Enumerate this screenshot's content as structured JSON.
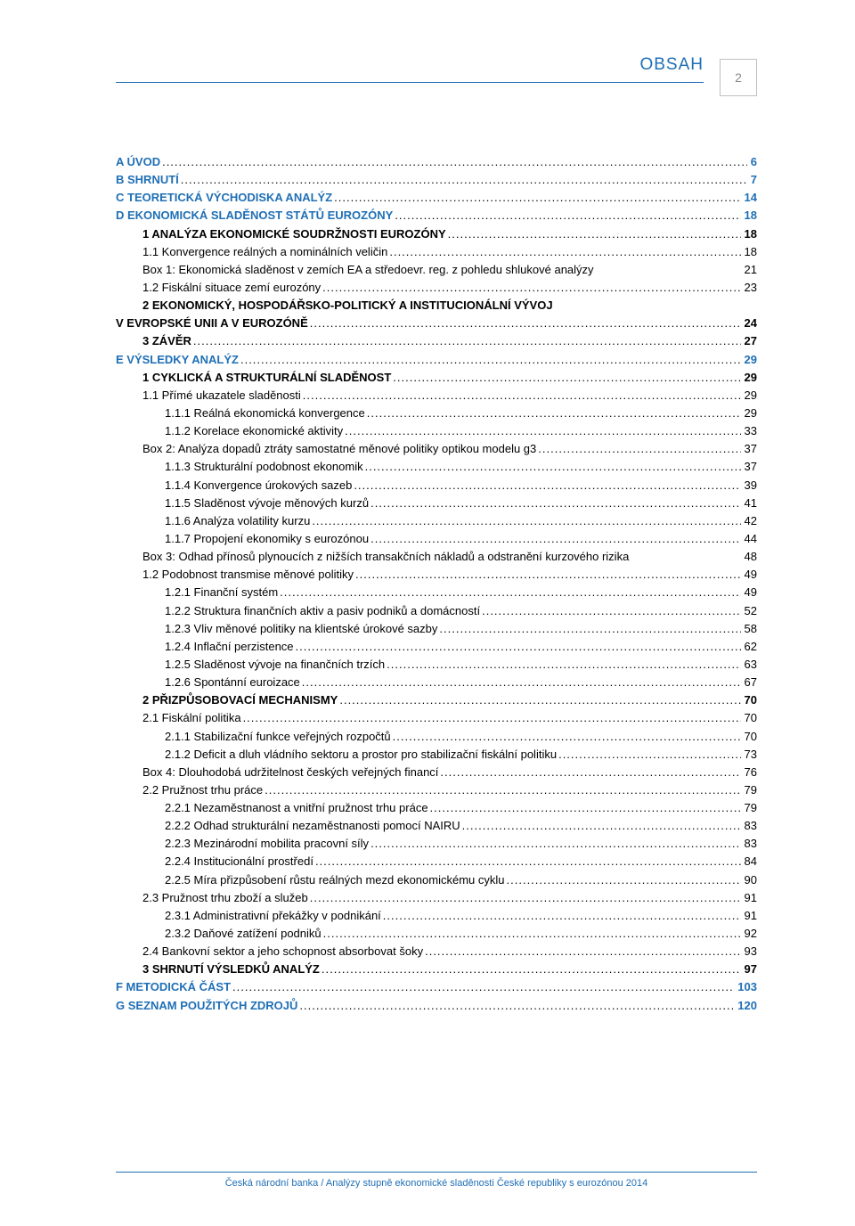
{
  "header": {
    "title": "OBSAH",
    "page_number": "2"
  },
  "colors": {
    "link": "#1f6fb5",
    "text": "#000000",
    "border_gray": "#c0c0c0"
  },
  "toc": [
    {
      "indent": 0,
      "bold": true,
      "blue": true,
      "label": "A    ÚVOD",
      "page": "6"
    },
    {
      "indent": 0,
      "bold": true,
      "blue": true,
      "label": "B    SHRNUTÍ",
      "page": "7"
    },
    {
      "indent": 0,
      "bold": true,
      "blue": true,
      "label": "C    TEORETICKÁ VÝCHODISKA ANALÝZ",
      "page": "14"
    },
    {
      "indent": 0,
      "bold": true,
      "blue": true,
      "label": "D    EKONOMICKÁ SLADĚNOST STÁTŮ EUROZÓNY",
      "page": "18"
    },
    {
      "indent": 30,
      "bold": true,
      "blue": false,
      "label": "1     ANALÝZA EKONOMICKÉ SOUDRŽNOSTI EUROZÓNY",
      "page": "18"
    },
    {
      "indent": 30,
      "bold": false,
      "blue": false,
      "label": "1.1    Konvergence reálných a nominálních veličin",
      "page": "18"
    },
    {
      "indent": 30,
      "bold": false,
      "blue": false,
      "label": "Box 1: Ekonomická sladěnost v zemích EA a středoevr. reg. z pohledu shlukové analýzy",
      "page": "21",
      "dots": false
    },
    {
      "indent": 30,
      "bold": false,
      "blue": false,
      "label": "1.2    Fiskální situace zemí eurozóny",
      "page": "23"
    },
    {
      "indent": 30,
      "bold": true,
      "blue": false,
      "label": "2     EKONOMICKÝ, HOSPODÁŘSKO-POLITICKÝ A INSTITUCIONÁLNÍ VÝVOJ",
      "nopage": true
    },
    {
      "indent": 0,
      "bold": true,
      "blue": false,
      "label": "V EVROPSKÉ UNII A V EUROZÓNĚ",
      "page": "24"
    },
    {
      "indent": 30,
      "bold": true,
      "blue": false,
      "label": "3     ZÁVĚR",
      "page": "27"
    },
    {
      "indent": 0,
      "bold": true,
      "blue": true,
      "label": "E    VÝSLEDKY ANALÝZ",
      "page": "29"
    },
    {
      "indent": 30,
      "bold": true,
      "blue": false,
      "label": "1     CYKLICKÁ A STRUKTURÁLNÍ SLADĚNOST",
      "page": "29"
    },
    {
      "indent": 30,
      "bold": false,
      "blue": false,
      "label": "1.1    Přímé ukazatele sladěnosti",
      "page": "29"
    },
    {
      "indent": 55,
      "bold": false,
      "blue": false,
      "label": "1.1.1    Reálná ekonomická konvergence",
      "page": "29"
    },
    {
      "indent": 55,
      "bold": false,
      "blue": false,
      "label": "1.1.2    Korelace ekonomické aktivity",
      "page": "33"
    },
    {
      "indent": 30,
      "bold": false,
      "blue": false,
      "label": "Box 2: Analýza dopadů ztráty samostatné měnové politiky optikou modelu g3",
      "page": "37"
    },
    {
      "indent": 55,
      "bold": false,
      "blue": false,
      "label": "1.1.3    Strukturální podobnost ekonomik",
      "page": "37"
    },
    {
      "indent": 55,
      "bold": false,
      "blue": false,
      "label": "1.1.4    Konvergence úrokových sazeb",
      "page": "39"
    },
    {
      "indent": 55,
      "bold": false,
      "blue": false,
      "label": "1.1.5    Sladěnost vývoje měnových kurzů",
      "page": "41"
    },
    {
      "indent": 55,
      "bold": false,
      "blue": false,
      "label": "1.1.6    Analýza volatility kurzu",
      "page": "42"
    },
    {
      "indent": 55,
      "bold": false,
      "blue": false,
      "label": "1.1.7    Propojení ekonomiky s eurozónou",
      "page": "44"
    },
    {
      "indent": 30,
      "bold": false,
      "blue": false,
      "label": "Box 3: Odhad přínosů plynoucích z nižších transakčních nákladů a odstranění kurzového rizika",
      "page": "48",
      "dots": false
    },
    {
      "indent": 30,
      "bold": false,
      "blue": false,
      "label": "1.2    Podobnost transmise měnové politiky",
      "page": "49"
    },
    {
      "indent": 55,
      "bold": false,
      "blue": false,
      "label": "1.2.1    Finanční systém",
      "page": "49"
    },
    {
      "indent": 55,
      "bold": false,
      "blue": false,
      "label": "1.2.2    Struktura finančních aktiv a pasiv podniků a domácností",
      "page": "52"
    },
    {
      "indent": 55,
      "bold": false,
      "blue": false,
      "label": "1.2.3    Vliv měnové politiky na klientské úrokové sazby",
      "page": "58"
    },
    {
      "indent": 55,
      "bold": false,
      "blue": false,
      "label": "1.2.4    Inflační perzistence",
      "page": "62"
    },
    {
      "indent": 55,
      "bold": false,
      "blue": false,
      "label": "1.2.5    Sladěnost vývoje na finančních trzích",
      "page": "63"
    },
    {
      "indent": 55,
      "bold": false,
      "blue": false,
      "label": "1.2.6    Spontánní euroizace",
      "page": "67"
    },
    {
      "indent": 30,
      "bold": true,
      "blue": false,
      "label": "2     PŘIZPŮSOBOVACÍ MECHANISMY",
      "page": "70"
    },
    {
      "indent": 30,
      "bold": false,
      "blue": false,
      "label": "2.1    Fiskální politika",
      "page": "70"
    },
    {
      "indent": 55,
      "bold": false,
      "blue": false,
      "label": "2.1.1    Stabilizační funkce veřejných rozpočtů",
      "page": "70"
    },
    {
      "indent": 55,
      "bold": false,
      "blue": false,
      "label": "2.1.2    Deficit a dluh vládního sektoru a prostor pro stabilizační fiskální politiku",
      "page": "73"
    },
    {
      "indent": 30,
      "bold": false,
      "blue": false,
      "label": "Box 4: Dlouhodobá udržitelnost českých veřejných financí",
      "page": "76"
    },
    {
      "indent": 30,
      "bold": false,
      "blue": false,
      "label": "2.2    Pružnost trhu práce",
      "page": "79"
    },
    {
      "indent": 55,
      "bold": false,
      "blue": false,
      "label": "2.2.1    Nezaměstnanost a vnitřní pružnost trhu práce",
      "page": "79"
    },
    {
      "indent": 55,
      "bold": false,
      "blue": false,
      "label": "2.2.2    Odhad strukturální nezaměstnanosti pomocí NAIRU",
      "page": "83"
    },
    {
      "indent": 55,
      "bold": false,
      "blue": false,
      "label": "2.2.3    Mezinárodní mobilita pracovní síly",
      "page": "83"
    },
    {
      "indent": 55,
      "bold": false,
      "blue": false,
      "label": "2.2.4    Institucionální prostředí",
      "page": "84"
    },
    {
      "indent": 55,
      "bold": false,
      "blue": false,
      "label": "2.2.5    Míra přizpůsobení růstu reálných mezd ekonomickému cyklu",
      "page": "90"
    },
    {
      "indent": 30,
      "bold": false,
      "blue": false,
      "label": "2.3    Pružnost trhu zboží a služeb",
      "page": "91"
    },
    {
      "indent": 55,
      "bold": false,
      "blue": false,
      "label": "2.3.1    Administrativní překážky v podnikání",
      "page": "91"
    },
    {
      "indent": 55,
      "bold": false,
      "blue": false,
      "label": "2.3.2    Daňové zatížení podniků",
      "page": "92"
    },
    {
      "indent": 30,
      "bold": false,
      "blue": false,
      "label": "2.4    Bankovní sektor a jeho schopnost absorbovat šoky",
      "page": "93"
    },
    {
      "indent": 30,
      "bold": true,
      "blue": false,
      "label": "3     SHRNUTÍ VÝSLEDKŮ ANALÝZ",
      "page": "97"
    },
    {
      "indent": 0,
      "bold": true,
      "blue": true,
      "label": "F    METODICKÁ ČÁST",
      "page": "103"
    },
    {
      "indent": 0,
      "bold": true,
      "blue": true,
      "label": "G    SEZNAM POUŽITÝCH ZDROJŮ",
      "page": "120"
    }
  ],
  "footer": "Česká národní banka / Analýzy stupně ekonomické sladěnosti České republiky s eurozónou 2014"
}
